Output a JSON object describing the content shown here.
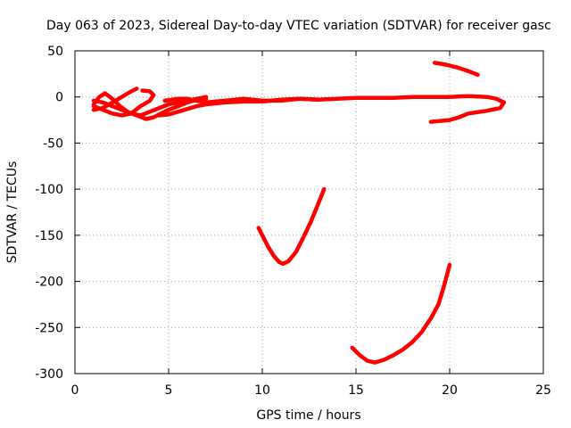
{
  "chart_data": {
    "type": "scatter",
    "title": "Day 063 of 2023, Sidereal Day-to-day VTEC variation (SDTVAR) for receiver gasc",
    "xlabel": "GPS time / hours",
    "ylabel": "SDTVAR / TECUs",
    "xlim": [
      0,
      25
    ],
    "ylim": [
      -300,
      50
    ],
    "xticks": [
      0,
      5,
      10,
      15,
      20,
      25
    ],
    "yticks": [
      50,
      0,
      -50,
      -100,
      -150,
      -200,
      -250,
      -300
    ],
    "grid": true,
    "color": "#ff0000",
    "series": [
      {
        "points": [
          [
            1.0,
            -8
          ],
          [
            1.3,
            0
          ],
          [
            1.6,
            4
          ],
          [
            2.0,
            -2
          ],
          [
            2.4,
            -10
          ],
          [
            2.8,
            -16
          ],
          [
            3.3,
            -20
          ],
          [
            3.8,
            -24
          ],
          [
            4.2,
            -22
          ],
          [
            4.6,
            -18
          ],
          [
            5.0,
            -14
          ],
          [
            5.5,
            -10
          ],
          [
            6.0,
            -6
          ],
          [
            6.5,
            -3
          ],
          [
            7.0,
            -2
          ]
        ]
      },
      {
        "points": [
          [
            1.0,
            -14
          ],
          [
            1.5,
            -12
          ],
          [
            2.0,
            -6
          ],
          [
            2.5,
            0
          ],
          [
            3.0,
            6
          ],
          [
            3.3,
            9
          ]
        ]
      },
      {
        "points": [
          [
            1.0,
            -4
          ],
          [
            1.5,
            -6
          ],
          [
            2.0,
            -10
          ],
          [
            2.5,
            -14
          ],
          [
            3.0,
            -18
          ],
          [
            3.5,
            -20
          ],
          [
            4.0,
            -16
          ],
          [
            4.5,
            -12
          ],
          [
            5.0,
            -8
          ],
          [
            5.5,
            -6
          ],
          [
            6.0,
            -4
          ],
          [
            6.5,
            -2
          ],
          [
            7.0,
            0
          ]
        ]
      },
      {
        "points": [
          [
            1.0,
            -10
          ],
          [
            1.5,
            -14
          ],
          [
            2.0,
            -18
          ],
          [
            2.5,
            -20
          ],
          [
            3.0,
            -18
          ],
          [
            3.5,
            -10
          ],
          [
            4.0,
            -4
          ],
          [
            4.2,
            2
          ],
          [
            4.0,
            6
          ],
          [
            3.6,
            7
          ]
        ]
      },
      {
        "points": [
          [
            4.5,
            -20
          ],
          [
            5.0,
            -19
          ],
          [
            5.5,
            -16
          ],
          [
            6.0,
            -13
          ],
          [
            6.5,
            -10
          ],
          [
            7.0,
            -8
          ],
          [
            8.0,
            -6
          ],
          [
            9.0,
            -5
          ],
          [
            10.0,
            -5
          ],
          [
            11.0,
            -3
          ],
          [
            12.0,
            -2
          ],
          [
            13.0,
            -3
          ],
          [
            14.0,
            -2
          ],
          [
            15.0,
            -1
          ],
          [
            16.0,
            -1
          ],
          [
            17.0,
            -1
          ],
          [
            18.0,
            0
          ],
          [
            19.0,
            0
          ],
          [
            20.0,
            0
          ],
          [
            21.0,
            1
          ],
          [
            22.0,
            0
          ],
          [
            22.5,
            -2
          ],
          [
            22.9,
            -6
          ],
          [
            22.7,
            -12
          ],
          [
            22.0,
            -15
          ],
          [
            21.0,
            -18
          ],
          [
            20.5,
            -22
          ],
          [
            20.0,
            -25
          ],
          [
            19.0,
            -27
          ]
        ]
      },
      {
        "points": [
          [
            4.8,
            -4
          ],
          [
            5.5,
            -2
          ],
          [
            6.0,
            -2
          ],
          [
            6.5,
            -4
          ],
          [
            7.0,
            -6
          ],
          [
            8.0,
            -4
          ],
          [
            9.0,
            -2
          ],
          [
            10.0,
            -4
          ],
          [
            11.0,
            -4
          ],
          [
            12.0,
            -2
          ],
          [
            13.0,
            -3
          ]
        ]
      },
      {
        "points": [
          [
            19.2,
            37
          ],
          [
            19.8,
            35
          ],
          [
            20.4,
            32
          ],
          [
            21.0,
            28
          ],
          [
            21.5,
            24
          ]
        ]
      },
      {
        "points": [
          [
            9.8,
            -142
          ],
          [
            10.0,
            -150
          ],
          [
            10.3,
            -162
          ],
          [
            10.6,
            -172
          ],
          [
            10.9,
            -179
          ],
          [
            11.1,
            -181
          ],
          [
            11.4,
            -178
          ],
          [
            11.8,
            -168
          ],
          [
            12.2,
            -152
          ],
          [
            12.6,
            -135
          ],
          [
            13.0,
            -115
          ],
          [
            13.3,
            -100
          ]
        ]
      },
      {
        "points": [
          [
            14.8,
            -272
          ],
          [
            15.2,
            -280
          ],
          [
            15.6,
            -286
          ],
          [
            16.0,
            -288
          ],
          [
            16.5,
            -285
          ],
          [
            17.0,
            -280
          ],
          [
            17.5,
            -274
          ],
          [
            18.0,
            -266
          ],
          [
            18.5,
            -255
          ],
          [
            19.0,
            -240
          ],
          [
            19.4,
            -225
          ],
          [
            19.7,
            -205
          ],
          [
            20.0,
            -182
          ]
        ]
      }
    ]
  }
}
